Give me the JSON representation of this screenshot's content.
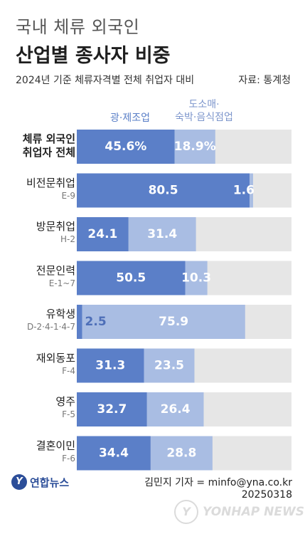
{
  "header": {
    "title_line1": "국내 체류 외국인",
    "title_line2": "산업별 종사자 비중",
    "subtitle": "2024년 기준 체류자격별 전체 취업자 대비",
    "source": "자료: 통계청"
  },
  "legend": {
    "series1": "광·제조업",
    "series2_line1": "도소매·",
    "series2_line2": "숙박·음식점업"
  },
  "footer": {
    "logo_text": "연합뉴스",
    "logo_mark": "Y",
    "byline": "김민지 기자 = minfo@yna.co.kr",
    "date": "20250318",
    "watermark_text": "YONHAP NEWS",
    "watermark_mark": "Y"
  },
  "colors": {
    "series1": "#5b7fc8",
    "series2": "#a9bde3",
    "track": "#e6e6e6"
  },
  "chart_data": {
    "type": "bar",
    "orientation": "horizontal",
    "stacked": true,
    "xlim": [
      0,
      100
    ],
    "categories": [
      {
        "label1": "체류 외국인",
        "label2": "취업자 전체",
        "bold": true
      },
      {
        "label1": "비전문취업",
        "label2": "E-9"
      },
      {
        "label1": "방문취업",
        "label2": "H-2"
      },
      {
        "label1": "전문인력",
        "label2": "E-1~7"
      },
      {
        "label1": "유학생",
        "label2": "D-2·4-1·4-7"
      },
      {
        "label1": "재외동포",
        "label2": "F-4"
      },
      {
        "label1": "영주",
        "label2": "F-5"
      },
      {
        "label1": "결혼이민",
        "label2": "F-6"
      }
    ],
    "series": [
      {
        "name": "광·제조업",
        "values": [
          45.6,
          80.5,
          24.1,
          50.5,
          2.5,
          31.3,
          32.7,
          34.4
        ],
        "labels": [
          "45.6%",
          "80.5",
          "24.1",
          "50.5",
          "2.5",
          "31.3",
          "32.7",
          "34.4"
        ]
      },
      {
        "name": "도소매·숙박·음식점업",
        "values": [
          18.9,
          1.6,
          31.4,
          10.3,
          75.9,
          23.5,
          26.4,
          28.8
        ],
        "labels": [
          "18.9%",
          "1.6",
          "31.4",
          "10.3",
          "75.9",
          "23.5",
          "26.4",
          "28.8"
        ]
      }
    ]
  }
}
